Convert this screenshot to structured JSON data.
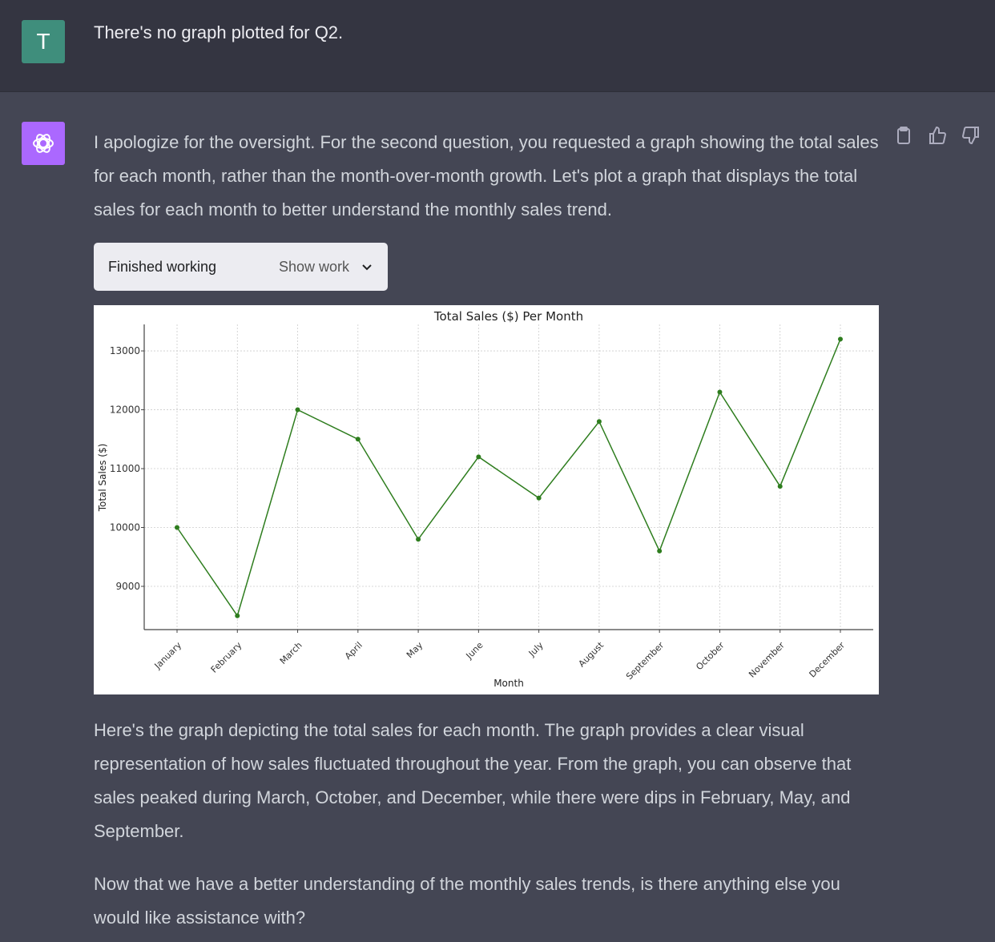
{
  "user": {
    "avatar_letter": "T",
    "message": "There's no graph plotted for Q2."
  },
  "assistant": {
    "intro": "I apologize for the oversight. For the second question, you requested a graph showing the total sales for each month, rather than the month-over-month growth. Let's plot a graph that displays the total sales for each month to better understand the monthly sales trend.",
    "work_status": "Finished working",
    "show_work": "Show work",
    "para2": "Here's the graph depicting the total sales for each month. The graph provides a clear visual representation of how sales fluctuated throughout the year. From the graph, you can observe that sales peaked during March, October, and December, while there were dips in February, May, and September.",
    "para3": "Now that we have a better understanding of the monthly sales trends, is there anything else you would like assistance with?",
    "actions": [
      "clipboard-icon",
      "thumbs-up-icon",
      "thumbs-down-icon"
    ]
  },
  "chart_data": {
    "type": "line",
    "title": "Total Sales ($) Per Month",
    "xlabel": "Month",
    "ylabel": "Total Sales ($)",
    "categories": [
      "January",
      "February",
      "March",
      "April",
      "May",
      "June",
      "July",
      "August",
      "September",
      "October",
      "November",
      "December"
    ],
    "values": [
      10000,
      8500,
      12000,
      11500,
      9800,
      11200,
      10500,
      11800,
      9600,
      12300,
      10700,
      13200
    ],
    "yticks": [
      9000,
      10000,
      11000,
      12000,
      13000
    ],
    "ylim": [
      8265,
      13450
    ],
    "grid": true,
    "color": "#2e7d1e"
  }
}
